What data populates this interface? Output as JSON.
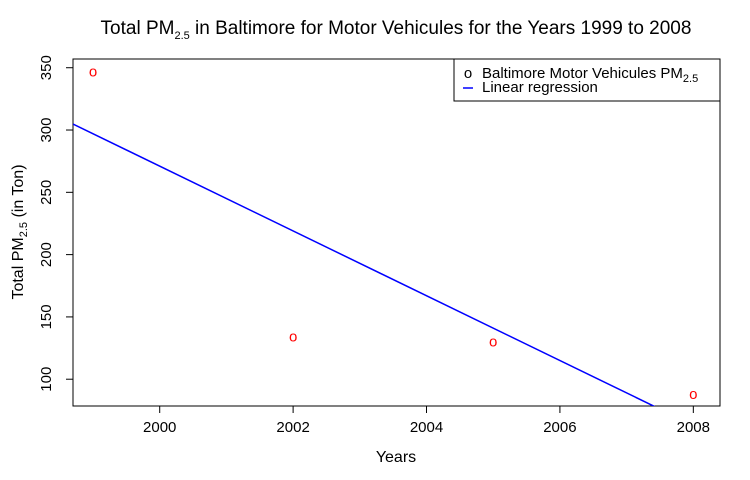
{
  "chart_data": {
    "type": "scatter",
    "title": {
      "prefix": "Total PM",
      "subscript": "2.5",
      "suffix": " in Baltimore for Motor Vehicules for the Years 1999 to 2008"
    },
    "xlabel": "Years",
    "ylabel": {
      "prefix": "Total PM",
      "subscript": "2.5",
      "suffix": " (in Ton)"
    },
    "xlim": [
      1998.7,
      2008.4
    ],
    "ylim": [
      78.5,
      357
    ],
    "x_ticks": [
      2000,
      2002,
      2004,
      2006,
      2008
    ],
    "y_ticks": [
      100,
      150,
      200,
      250,
      300,
      350
    ],
    "grid": false,
    "legend_position": "top-right",
    "series": [
      {
        "name": "Baltimore Motor Vehicules PM",
        "name_subscript": "2.5",
        "kind": "points",
        "marker": "o",
        "color": "#ff0000",
        "x": [
          1999,
          2002,
          2005,
          2008
        ],
        "y": [
          346.8,
          134.3,
          130.4,
          88.3
        ]
      },
      {
        "name": "Linear regression",
        "kind": "line",
        "color": "#0000ff",
        "intercept_at_1999": 297.0,
        "slope": -26.0
      }
    ]
  }
}
